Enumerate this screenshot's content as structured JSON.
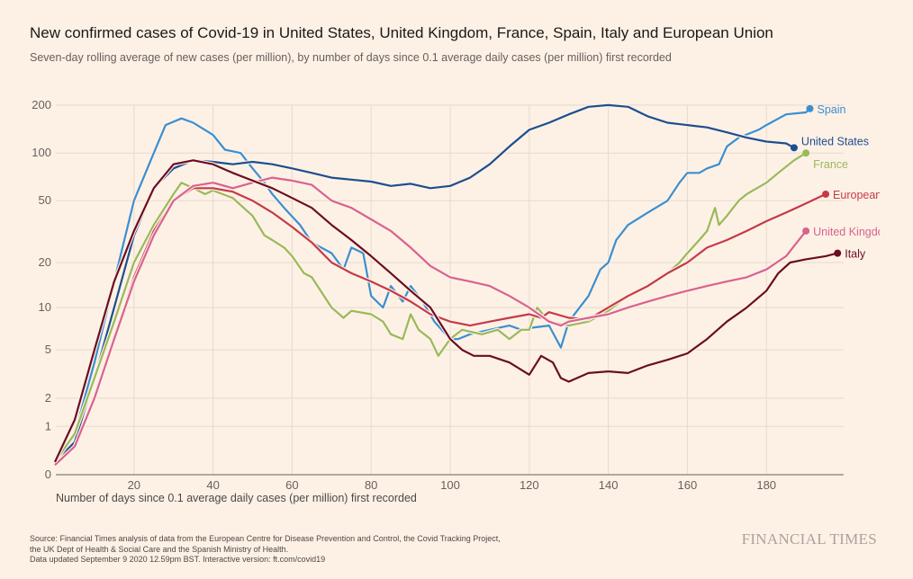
{
  "header": {
    "title": "New confirmed cases of Covid-19 in United States, United Kingdom, France, Spain, Italy and European Union",
    "subtitle": "Seven-day rolling average of new cases (per million), by number of days since 0.1 average daily cases (per million) first recorded"
  },
  "footer": {
    "source_lines": [
      "Source: Financial Times analysis of data from the European Centre for Disease Prevention and Control, the Covid Tracking Project,",
      "the UK Dept of Health & Social Care and the Spanish Ministry of Health.",
      "Data updated September 9 2020 12.59pm BST. Interactive version: ft.com/covid19"
    ],
    "logo": "FINANCIAL TIMES"
  },
  "chart_data": {
    "type": "line",
    "title": "New confirmed cases of Covid-19 in United States, United Kingdom, France, Spain, Italy and European Union",
    "xlabel": "Number of days since 0.1 average daily cases (per million) first recorded",
    "ylabel": "",
    "xlim": [
      0,
      200
    ],
    "ylim": [
      0,
      200
    ],
    "yscale": "log(1+y)",
    "xticks": [
      20,
      40,
      60,
      80,
      100,
      120,
      140,
      160,
      180
    ],
    "yticks": [
      0,
      1,
      2,
      5,
      10,
      20,
      50,
      100,
      200
    ],
    "grid": true,
    "legend": "direct labels at line ends",
    "series": [
      {
        "name": "Spain",
        "color": "#3a8fd0",
        "x": [
          0,
          5,
          10,
          15,
          20,
          25,
          28,
          32,
          35,
          40,
          43,
          47,
          50,
          53,
          55,
          58,
          62,
          65,
          70,
          73,
          75,
          78,
          80,
          83,
          85,
          88,
          90,
          93,
          96,
          100,
          102,
          105,
          110,
          115,
          118,
          120,
          125,
          128,
          130,
          135,
          138,
          140,
          142,
          145,
          150,
          155,
          158,
          160,
          163,
          165,
          168,
          170,
          173,
          178,
          180,
          185,
          190,
          191
        ],
        "y": [
          0.2,
          0.8,
          4,
          15,
          50,
          100,
          150,
          165,
          155,
          130,
          105,
          100,
          80,
          65,
          55,
          45,
          35,
          27,
          23,
          18,
          25,
          23,
          12,
          10,
          14,
          11,
          14,
          11,
          8,
          6,
          6,
          6.5,
          7,
          7.5,
          7,
          7.2,
          7.5,
          5.2,
          8,
          12,
          18,
          20,
          28,
          35,
          42,
          50,
          65,
          75,
          75,
          80,
          85,
          110,
          125,
          140,
          150,
          175,
          180,
          190
        ]
      },
      {
        "name": "United States",
        "color": "#1d4e8f",
        "x": [
          0,
          5,
          10,
          15,
          20,
          25,
          30,
          35,
          40,
          45,
          50,
          55,
          60,
          65,
          70,
          75,
          80,
          85,
          90,
          95,
          100,
          105,
          110,
          115,
          120,
          125,
          130,
          135,
          140,
          145,
          150,
          155,
          160,
          165,
          170,
          175,
          180,
          185,
          187
        ],
        "y": [
          0.2,
          0.6,
          3,
          10,
          30,
          60,
          80,
          90,
          88,
          85,
          88,
          85,
          80,
          75,
          70,
          68,
          66,
          62,
          64,
          60,
          62,
          70,
          85,
          110,
          140,
          155,
          175,
          195,
          200,
          195,
          170,
          155,
          150,
          145,
          135,
          125,
          118,
          115,
          108
        ]
      },
      {
        "name": "France",
        "color": "#9ab959",
        "x": [
          0,
          5,
          10,
          15,
          20,
          25,
          30,
          32,
          35,
          38,
          40,
          45,
          50,
          53,
          55,
          58,
          60,
          63,
          65,
          70,
          73,
          75,
          80,
          83,
          85,
          88,
          90,
          92,
          95,
          97,
          100,
          103,
          108,
          112,
          115,
          118,
          120,
          122,
          125,
          130,
          135,
          140,
          145,
          150,
          155,
          158,
          160,
          163,
          165,
          167,
          168,
          170,
          173,
          175,
          180,
          183,
          187,
          190
        ],
        "y": [
          0.2,
          0.8,
          3,
          8,
          20,
          35,
          55,
          65,
          60,
          55,
          58,
          52,
          40,
          30,
          28,
          25,
          22,
          17,
          16,
          10,
          8.5,
          9.5,
          9,
          8,
          6.5,
          6,
          9,
          7,
          6,
          4.5,
          6,
          7,
          6.5,
          7,
          6,
          7,
          7,
          10,
          8,
          7.5,
          8,
          9.5,
          12,
          14,
          17,
          20,
          23,
          28,
          32,
          45,
          35,
          40,
          50,
          55,
          65,
          75,
          90,
          100
        ]
      },
      {
        "name": "European Union",
        "color": "#c53a48",
        "x": [
          0,
          5,
          10,
          15,
          20,
          25,
          30,
          35,
          40,
          45,
          50,
          55,
          60,
          65,
          70,
          75,
          80,
          85,
          90,
          95,
          100,
          105,
          110,
          115,
          120,
          123,
          125,
          130,
          135,
          140,
          145,
          150,
          155,
          160,
          165,
          170,
          175,
          180,
          185,
          190,
          195
        ],
        "y": [
          0.15,
          0.5,
          2,
          6,
          16,
          32,
          50,
          60,
          60,
          57,
          50,
          42,
          34,
          27,
          20,
          17,
          15,
          13,
          11,
          9,
          8,
          7.5,
          8,
          8.5,
          9,
          8.5,
          9.3,
          8.5,
          8.3,
          10,
          12,
          14,
          17,
          20,
          25,
          28,
          32,
          37,
          42,
          48,
          55
        ]
      },
      {
        "name": "United Kingdom",
        "color": "#d9628f",
        "x": [
          0,
          5,
          10,
          15,
          20,
          25,
          30,
          35,
          40,
          45,
          50,
          55,
          60,
          65,
          70,
          75,
          80,
          85,
          90,
          95,
          100,
          105,
          110,
          115,
          120,
          125,
          128,
          130,
          135,
          140,
          145,
          150,
          155,
          160,
          165,
          170,
          175,
          180,
          185,
          190
        ],
        "y": [
          0.15,
          0.5,
          2,
          6,
          15,
          30,
          50,
          62,
          65,
          60,
          65,
          70,
          67,
          63,
          50,
          45,
          38,
          32,
          25,
          19,
          16,
          15,
          14,
          12,
          10,
          8,
          7.5,
          8,
          8.5,
          9,
          10,
          11,
          12,
          13,
          14,
          15,
          16,
          18,
          22,
          32
        ]
      },
      {
        "name": "Italy",
        "color": "#6b0d22",
        "x": [
          0,
          5,
          10,
          15,
          20,
          25,
          30,
          35,
          40,
          45,
          50,
          55,
          60,
          65,
          70,
          75,
          80,
          85,
          90,
          95,
          100,
          103,
          106,
          110,
          115,
          120,
          123,
          126,
          128,
          130,
          135,
          140,
          145,
          150,
          155,
          160,
          165,
          170,
          175,
          180,
          183,
          186,
          190,
          195,
          198
        ],
        "y": [
          0.2,
          1.2,
          5,
          15,
          32,
          60,
          85,
          90,
          85,
          75,
          67,
          60,
          52,
          45,
          35,
          28,
          22,
          17,
          13,
          10,
          6,
          5,
          4.5,
          4.5,
          4,
          3.2,
          4.5,
          4,
          3,
          2.8,
          3.3,
          3.4,
          3.3,
          3.8,
          4.2,
          4.7,
          6,
          8,
          10,
          13,
          17,
          20,
          21,
          22,
          23
        ]
      }
    ]
  }
}
